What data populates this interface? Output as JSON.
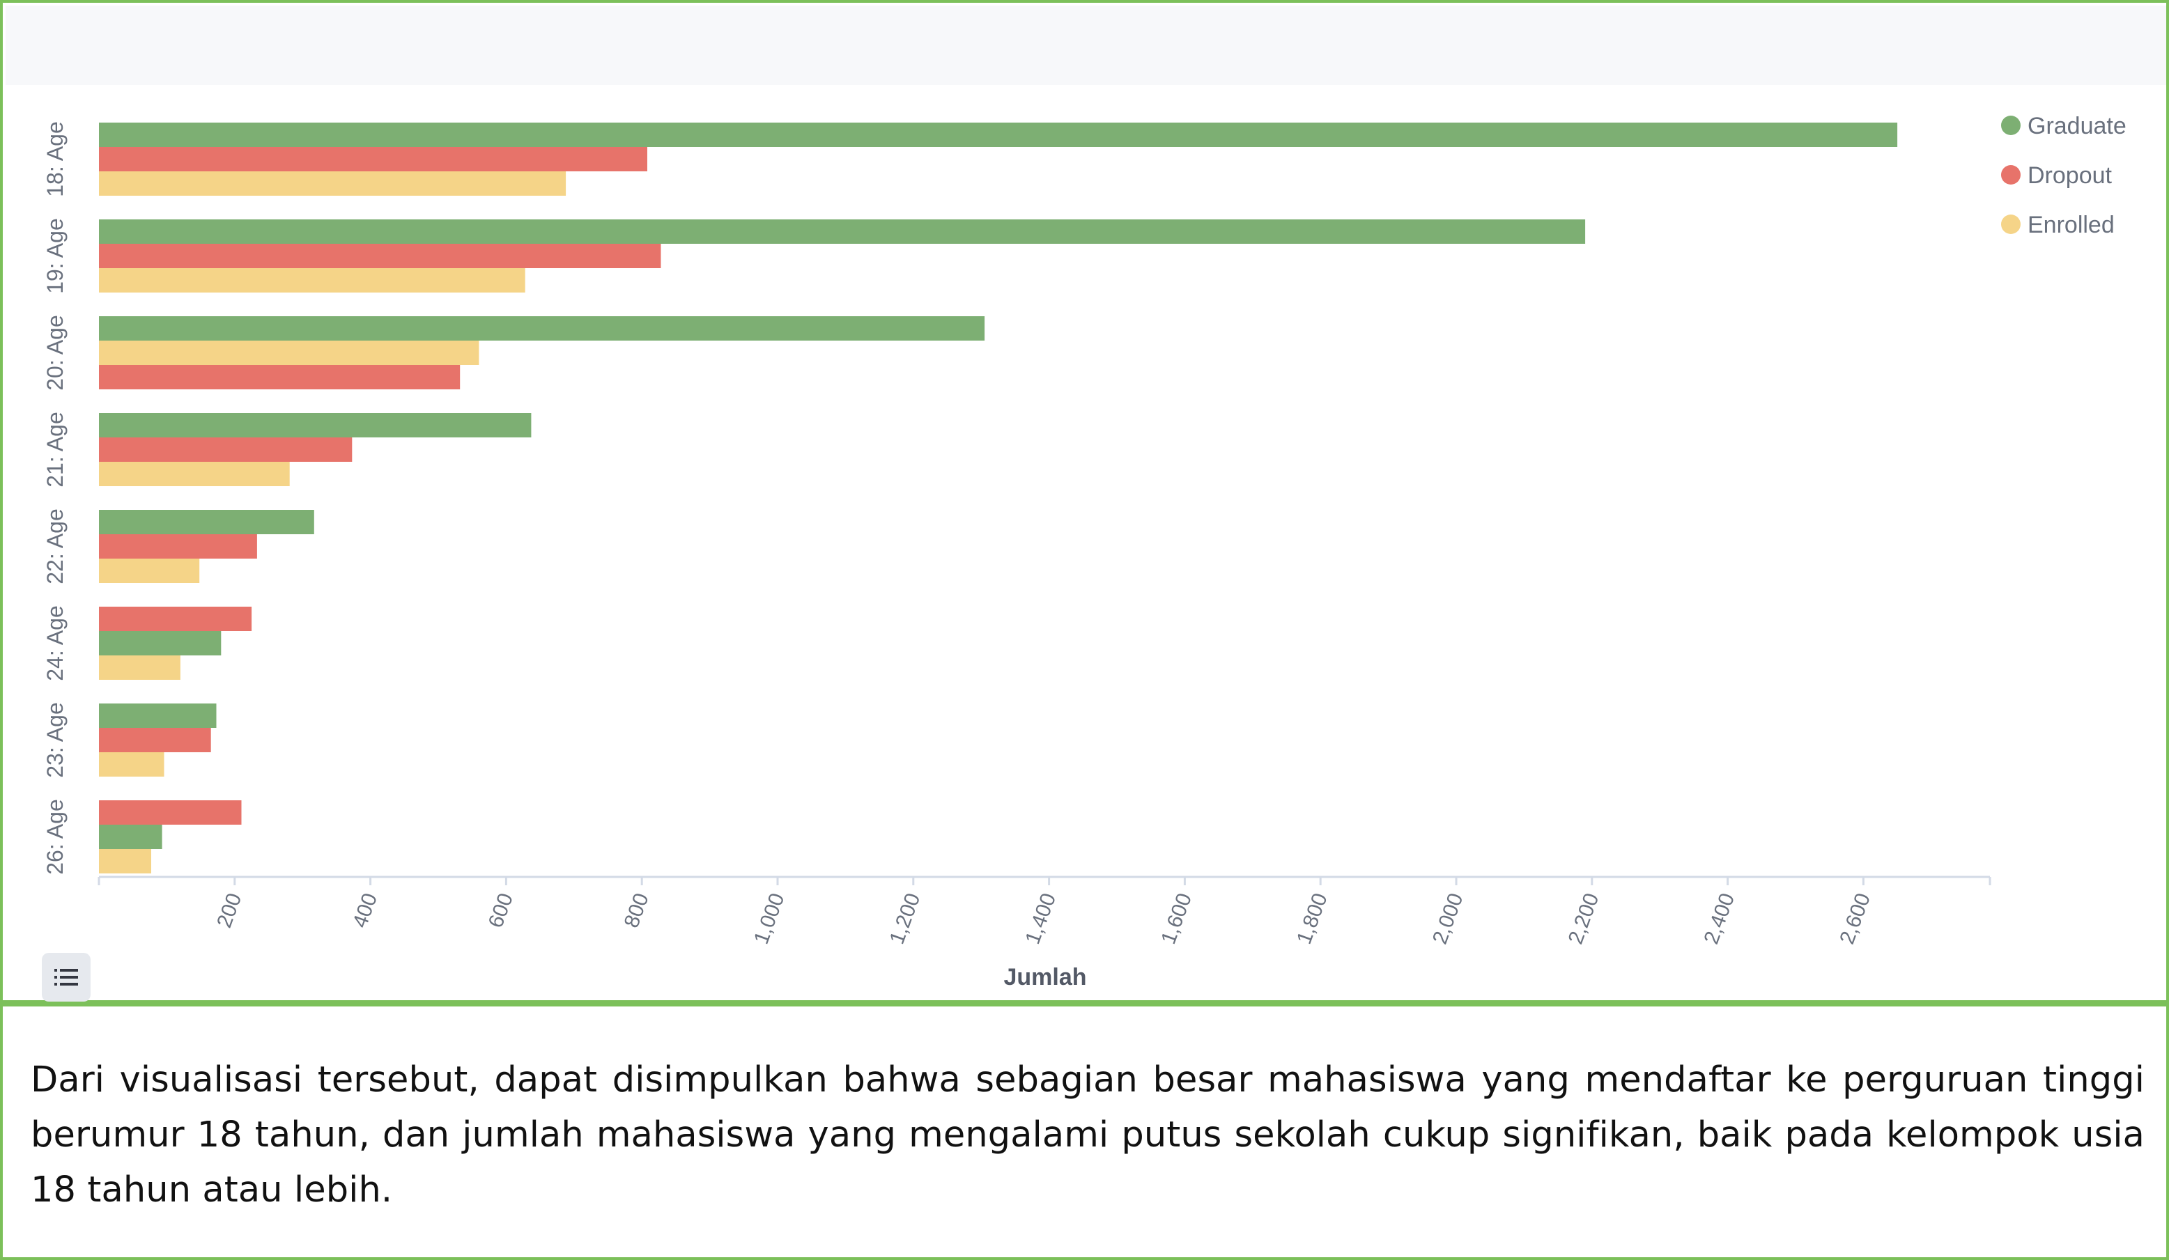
{
  "chart_data": {
    "type": "bar",
    "orientation": "horizontal",
    "categories": [
      "18: Age",
      "19: Age",
      "20: Age",
      "21: Age",
      "22: Age",
      "24: Age",
      "23: Age",
      "26: Age"
    ],
    "series": [
      {
        "name": "Graduate",
        "color": "#7daf73",
        "values": [
          2650,
          2190,
          1305,
          637,
          317,
          180,
          173,
          93
        ]
      },
      {
        "name": "Dropout",
        "color": "#e7736a",
        "values": [
          808,
          828,
          532,
          373,
          233,
          225,
          165,
          210
        ]
      },
      {
        "name": "Enrolled",
        "color": "#f5d488",
        "values": [
          688,
          628,
          560,
          281,
          148,
          120,
          96,
          77
        ]
      }
    ],
    "bar_order": [
      [
        "Graduate",
        "Dropout",
        "Enrolled"
      ],
      [
        "Graduate",
        "Dropout",
        "Enrolled"
      ],
      [
        "Graduate",
        "Enrolled",
        "Dropout"
      ],
      [
        "Graduate",
        "Dropout",
        "Enrolled"
      ],
      [
        "Graduate",
        "Dropout",
        "Enrolled"
      ],
      [
        "Dropout",
        "Graduate",
        "Enrolled"
      ],
      [
        "Graduate",
        "Dropout",
        "Enrolled"
      ],
      [
        "Dropout",
        "Graduate",
        "Enrolled"
      ]
    ],
    "xlabel": "Jumlah",
    "ylabel": "",
    "xlim": [
      0,
      2800
    ],
    "x_ticks": [
      200,
      400,
      600,
      800,
      1000,
      1200,
      1400,
      1600,
      1800,
      2000,
      2200,
      2400,
      2600
    ],
    "x_tick_labels": [
      "200",
      "400",
      "600",
      "800",
      "1,000",
      "1,200",
      "1,400",
      "1,600",
      "1,800",
      "2,000",
      "2,200",
      "2,400",
      "2,600"
    ],
    "grid": false,
    "legend_position": "top-right"
  },
  "icons": {
    "legend_toggle": "list-icon"
  },
  "caption": {
    "text": "Dari visualisasi tersebut, dapat disimpulkan bahwa sebagian besar mahasiswa yang mendaftar ke perguruan tinggi berumur 18 tahun, dan jumlah mahasiswa yang mengalami putus sekolah cukup signifikan, baik pada kelompok usia 18 tahun atau lebih."
  }
}
